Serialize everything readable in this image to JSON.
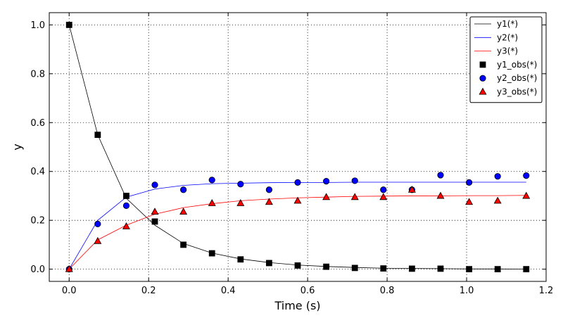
{
  "chart_data": {
    "type": "line",
    "title": "",
    "xlabel": "Time (s)",
    "ylabel": "y",
    "xlim": [
      -0.05,
      1.2
    ],
    "ylim": [
      -0.05,
      1.05
    ],
    "xticks": [
      0.0,
      0.2,
      0.4,
      0.6,
      0.8,
      1.0,
      1.2
    ],
    "yticks": [
      0.0,
      0.2,
      0.4,
      0.6,
      0.8,
      1.0
    ],
    "xtick_labels": [
      "0.0",
      "0.2",
      "0.4",
      "0.6",
      "0.8",
      "1.0",
      "1.2"
    ],
    "ytick_labels": [
      "0.0",
      "0.2",
      "0.4",
      "0.6",
      "0.8",
      "1.0"
    ],
    "grid": true,
    "legend_position": "top-right",
    "x": [
      0.0,
      0.0719,
      0.1438,
      0.2156,
      0.2875,
      0.3594,
      0.4313,
      0.5031,
      0.575,
      0.6469,
      0.7188,
      0.7906,
      0.8625,
      0.9344,
      1.0063,
      1.0781,
      1.15
    ],
    "series": [
      {
        "name": "y1(*)",
        "kind": "line",
        "color": "#000000",
        "values": [
          1.0,
          0.55,
          0.29,
          0.18,
          0.105,
          0.066,
          0.042,
          0.027,
          0.017,
          0.011,
          0.007,
          0.004,
          0.003,
          0.002,
          0.001,
          0.001,
          0.0
        ]
      },
      {
        "name": "y2(*)",
        "kind": "line",
        "color": "#0000ff",
        "values": [
          0.0,
          0.2,
          0.295,
          0.328,
          0.343,
          0.35,
          0.352,
          0.354,
          0.355,
          0.355,
          0.356,
          0.356,
          0.356,
          0.356,
          0.356,
          0.356,
          0.356
        ]
      },
      {
        "name": "y3(*)",
        "kind": "line",
        "color": "#ff0000",
        "values": [
          0.0,
          0.12,
          0.18,
          0.225,
          0.252,
          0.268,
          0.28,
          0.287,
          0.292,
          0.295,
          0.298,
          0.299,
          0.3,
          0.3,
          0.301,
          0.301,
          0.302
        ]
      },
      {
        "name": "y1_obs(*)",
        "kind": "scatter",
        "marker": "square",
        "color": "#000000",
        "values": [
          1.0,
          0.55,
          0.3,
          0.195,
          0.1,
          0.065,
          0.04,
          0.025,
          0.015,
          0.01,
          0.005,
          0.003,
          0.002,
          0.002,
          0.0,
          0.0,
          0.0
        ]
      },
      {
        "name": "y2_obs(*)",
        "kind": "scatter",
        "marker": "circle",
        "color": "#0000ff",
        "values": [
          0.0,
          0.185,
          0.26,
          0.345,
          0.325,
          0.365,
          0.348,
          0.325,
          0.355,
          0.36,
          0.362,
          0.325,
          0.325,
          0.385,
          0.355,
          0.38,
          0.383
        ]
      },
      {
        "name": "y3_obs(*)",
        "kind": "scatter",
        "marker": "triangle",
        "color": "#ff0000",
        "values": [
          0.0,
          0.115,
          0.175,
          0.235,
          0.235,
          0.27,
          0.27,
          0.275,
          0.28,
          0.295,
          0.295,
          0.295,
          0.325,
          0.3,
          0.275,
          0.28,
          0.3
        ]
      }
    ]
  }
}
